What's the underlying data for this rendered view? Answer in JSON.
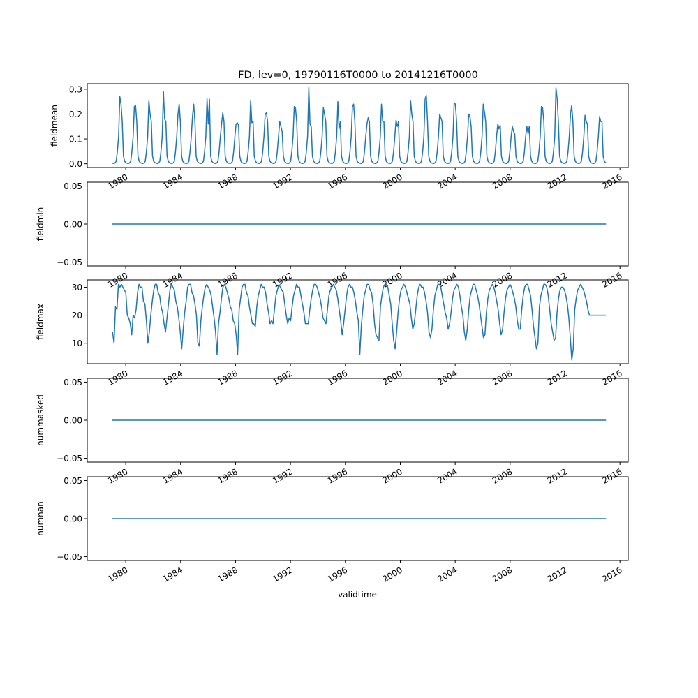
{
  "figure": {
    "title": "FD, lev=0, 19790116T0000 to 20141216T0000",
    "xlabel": "validtime",
    "line_color": "#1f77b4"
  },
  "chart_data": [
    {
      "type": "line",
      "ylabel": "fieldmean",
      "x_range": [
        "1979-01-16",
        "2014-12-16"
      ],
      "xlim": [
        1977.2,
        2016.6
      ],
      "x_ticks": [
        1980,
        1984,
        1988,
        1992,
        1996,
        2000,
        2004,
        2008,
        2012,
        2016
      ],
      "x_tick_labels": [
        "1980",
        "1984",
        "1988",
        "1992",
        "1996",
        "2000",
        "2004",
        "2008",
        "2012",
        "2016"
      ],
      "ylim": [
        -0.015,
        0.322
      ],
      "y_ticks": [
        0.0,
        0.1,
        0.2,
        0.3
      ],
      "y_tick_labels": [
        "0.0",
        "0.1",
        "0.2",
        "0.3"
      ],
      "annual_peaks": [
        0.27,
        0.235,
        0.29,
        0.24,
        0.262,
        0.205,
        0.165,
        0.255,
        0.205,
        0.17,
        0.23,
        0.307,
        0.225,
        0.25,
        0.24,
        0.185,
        0.24,
        0.175,
        0.255,
        0.275,
        0.2,
        0.245,
        0.2,
        0.24,
        0.16,
        0.15,
        0.15,
        0.23,
        0.305,
        0.235,
        0.195,
        0.19
      ],
      "values": [
        0.002,
        0.001,
        0.003,
        0.01,
        0.05,
        0.11,
        0.27,
        0.24,
        0.17,
        0.03,
        0.01,
        0.004,
        0.002,
        0.001,
        0.003,
        0.01,
        0.05,
        0.11,
        0.23,
        0.235,
        0.17,
        0.03,
        0.01,
        0.004,
        0.002,
        0.001,
        0.003,
        0.01,
        0.05,
        0.11,
        0.255,
        0.2,
        0.17,
        0.03,
        0.01,
        0.004,
        0.002,
        0.001,
        0.003,
        0.01,
        0.05,
        0.11,
        0.29,
        0.18,
        0.17,
        0.03,
        0.01,
        0.004,
        0.002,
        0.001,
        0.003,
        0.01,
        0.05,
        0.11,
        0.2,
        0.24,
        0.17,
        0.03,
        0.01,
        0.004,
        0.002,
        0.001,
        0.003,
        0.01,
        0.05,
        0.11,
        0.19,
        0.24,
        0.17,
        0.03,
        0.01,
        0.004,
        0.002,
        0.001,
        0.003,
        0.01,
        0.05,
        0.11,
        0.262,
        0.16,
        0.26,
        0.03,
        0.01,
        0.004,
        0.002,
        0.001,
        0.003,
        0.01,
        0.05,
        0.11,
        0.16,
        0.205,
        0.17,
        0.03,
        0.01,
        0.004,
        0.002,
        0.001,
        0.003,
        0.01,
        0.05,
        0.11,
        0.16,
        0.165,
        0.155,
        0.03,
        0.01,
        0.004,
        0.002,
        0.001,
        0.003,
        0.01,
        0.05,
        0.11,
        0.255,
        0.165,
        0.17,
        0.03,
        0.01,
        0.004,
        0.002,
        0.001,
        0.003,
        0.01,
        0.05,
        0.11,
        0.2,
        0.205,
        0.17,
        0.03,
        0.01,
        0.004,
        0.002,
        0.001,
        0.003,
        0.01,
        0.05,
        0.11,
        0.17,
        0.15,
        0.13,
        0.03,
        0.01,
        0.004,
        0.002,
        0.001,
        0.003,
        0.01,
        0.05,
        0.11,
        0.23,
        0.225,
        0.17,
        0.03,
        0.01,
        0.004,
        0.002,
        0.001,
        0.003,
        0.01,
        0.05,
        0.11,
        0.307,
        0.16,
        0.15,
        0.03,
        0.01,
        0.004,
        0.002,
        0.001,
        0.003,
        0.01,
        0.05,
        0.11,
        0.225,
        0.2,
        0.17,
        0.03,
        0.01,
        0.004,
        0.002,
        0.001,
        0.003,
        0.01,
        0.05,
        0.11,
        0.25,
        0.14,
        0.17,
        0.03,
        0.01,
        0.004,
        0.002,
        0.001,
        0.003,
        0.01,
        0.05,
        0.11,
        0.23,
        0.24,
        0.17,
        0.03,
        0.01,
        0.004,
        0.002,
        0.001,
        0.003,
        0.01,
        0.05,
        0.11,
        0.16,
        0.185,
        0.17,
        0.03,
        0.01,
        0.004,
        0.002,
        0.001,
        0.003,
        0.01,
        0.05,
        0.11,
        0.24,
        0.17,
        0.17,
        0.03,
        0.01,
        0.004,
        0.002,
        0.001,
        0.003,
        0.01,
        0.05,
        0.11,
        0.175,
        0.15,
        0.17,
        0.03,
        0.01,
        0.004,
        0.002,
        0.001,
        0.003,
        0.01,
        0.05,
        0.11,
        0.255,
        0.2,
        0.17,
        0.03,
        0.01,
        0.004,
        0.002,
        0.001,
        0.003,
        0.01,
        0.05,
        0.11,
        0.26,
        0.275,
        0.17,
        0.03,
        0.01,
        0.004,
        0.002,
        0.001,
        0.003,
        0.01,
        0.05,
        0.11,
        0.2,
        0.185,
        0.17,
        0.03,
        0.01,
        0.004,
        0.002,
        0.001,
        0.003,
        0.01,
        0.05,
        0.11,
        0.245,
        0.24,
        0.17,
        0.03,
        0.01,
        0.004,
        0.002,
        0.001,
        0.003,
        0.01,
        0.05,
        0.11,
        0.2,
        0.19,
        0.15,
        0.03,
        0.01,
        0.004,
        0.002,
        0.001,
        0.003,
        0.01,
        0.05,
        0.11,
        0.24,
        0.21,
        0.17,
        0.03,
        0.01,
        0.004,
        0.002,
        0.001,
        0.003,
        0.01,
        0.05,
        0.11,
        0.16,
        0.14,
        0.155,
        0.03,
        0.01,
        0.004,
        0.002,
        0.001,
        0.003,
        0.01,
        0.05,
        0.11,
        0.15,
        0.13,
        0.12,
        0.03,
        0.01,
        0.004,
        0.002,
        0.001,
        0.003,
        0.01,
        0.05,
        0.11,
        0.15,
        0.12,
        0.15,
        0.03,
        0.01,
        0.004,
        0.002,
        0.001,
        0.003,
        0.01,
        0.05,
        0.11,
        0.23,
        0.225,
        0.17,
        0.03,
        0.01,
        0.004,
        0.002,
        0.001,
        0.003,
        0.01,
        0.05,
        0.11,
        0.305,
        0.26,
        0.17,
        0.03,
        0.01,
        0.004,
        0.002,
        0.001,
        0.003,
        0.01,
        0.05,
        0.11,
        0.2,
        0.235,
        0.17,
        0.03,
        0.01,
        0.004,
        0.002,
        0.001,
        0.003,
        0.01,
        0.05,
        0.11,
        0.195,
        0.17,
        0.16,
        0.03,
        0.01,
        0.004,
        0.002,
        0.001,
        0.003,
        0.01,
        0.05,
        0.11,
        0.19,
        0.17,
        0.17,
        0.03,
        0.01,
        0.004
      ]
    },
    {
      "type": "line",
      "ylabel": "fieldmin",
      "x_range": [
        "1979-01-16",
        "2014-12-16"
      ],
      "xlim": [
        1977.2,
        2016.6
      ],
      "x_ticks": [
        1980,
        1984,
        1988,
        1992,
        1996,
        2000,
        2004,
        2008,
        2012,
        2016
      ],
      "x_tick_labels": [
        "1980",
        "1984",
        "1988",
        "1992",
        "1996",
        "2000",
        "2004",
        "2008",
        "2012",
        "2016"
      ],
      "ylim": [
        -0.055,
        0.055
      ],
      "y_ticks": [
        -0.05,
        0.0,
        0.05
      ],
      "y_tick_labels": [
        "−0.05",
        "0.00",
        "0.05"
      ],
      "constant_value": 0.0
    },
    {
      "type": "line",
      "ylabel": "fieldmax",
      "x_range": [
        "1979-01-16",
        "2014-12-16"
      ],
      "xlim": [
        1977.2,
        2016.6
      ],
      "x_ticks": [
        1980,
        1984,
        1988,
        1992,
        1996,
        2000,
        2004,
        2008,
        2012,
        2016
      ],
      "x_tick_labels": [
        "1980",
        "1984",
        "1988",
        "1992",
        "1996",
        "2000",
        "2004",
        "2008",
        "2012",
        "2016"
      ],
      "ylim": [
        2.7,
        32.6
      ],
      "y_ticks": [
        10,
        20,
        30
      ],
      "y_tick_labels": [
        "10",
        "20",
        "30"
      ],
      "annual_minima": [
        10,
        13,
        10,
        14,
        8,
        9,
        6,
        17,
        6,
        17,
        15,
        16,
        18,
        17,
        18,
        17,
        13,
        17,
        6,
        12,
        8,
        15,
        12,
        15,
        11,
        12,
        13,
        15,
        8,
        11,
        4,
        20
      ],
      "values": [
        14,
        10,
        23,
        22,
        31,
        30,
        31,
        30,
        29,
        28,
        20,
        19,
        17,
        13,
        20,
        19,
        22,
        28,
        31,
        30,
        30,
        25,
        24,
        18,
        10,
        14,
        20,
        25,
        29,
        31,
        31,
        28,
        27,
        23,
        21,
        17,
        14,
        19,
        24,
        29,
        31,
        30,
        29,
        25,
        23,
        19,
        14,
        8,
        15,
        21,
        25,
        30,
        31,
        31,
        28,
        27,
        24,
        20,
        10,
        9,
        18,
        23,
        27,
        30,
        31,
        30,
        29,
        27,
        23,
        19,
        14,
        6,
        17,
        21,
        26,
        30,
        31,
        30,
        28,
        26,
        23,
        22,
        18,
        17,
        13,
        6,
        22,
        26,
        30,
        31,
        31,
        28,
        27,
        23,
        20,
        17,
        17,
        16,
        23,
        27,
        29,
        31,
        30,
        30,
        28,
        24,
        21,
        17,
        18,
        17,
        22,
        27,
        29,
        31,
        30,
        29,
        28,
        24,
        20,
        17,
        19,
        18,
        23,
        27,
        29,
        31,
        30,
        30,
        27,
        24,
        21,
        17,
        17,
        17,
        22,
        26,
        29,
        31,
        31,
        30,
        28,
        26,
        23,
        19,
        18,
        17,
        22,
        27,
        29,
        30,
        31,
        30,
        29,
        26,
        22,
        18,
        13,
        17,
        22,
        27,
        30,
        31,
        30,
        30,
        28,
        25,
        21,
        18,
        6,
        16,
        22,
        27,
        29,
        31,
        31,
        29,
        28,
        24,
        17,
        13,
        12,
        11,
        23,
        27,
        30,
        31,
        31,
        30,
        27,
        24,
        17,
        11,
        8,
        14,
        21,
        26,
        29,
        30,
        31,
        30,
        28,
        26,
        24,
        19,
        15,
        17,
        22,
        27,
        30,
        31,
        30,
        30,
        28,
        25,
        21,
        14,
        12,
        15,
        22,
        27,
        29,
        31,
        31,
        30,
        27,
        24,
        21,
        19,
        15,
        17,
        21,
        26,
        29,
        30,
        31,
        30,
        27,
        23,
        20,
        14,
        11,
        15,
        22,
        27,
        29,
        31,
        31,
        29,
        27,
        24,
        20,
        16,
        12,
        13,
        21,
        26,
        29,
        30,
        31,
        30,
        28,
        25,
        22,
        17,
        13,
        15,
        21,
        26,
        29,
        30,
        31,
        30,
        28,
        26,
        23,
        18,
        15,
        15,
        22,
        27,
        30,
        31,
        31,
        29,
        27,
        22,
        16,
        12,
        8,
        10,
        23,
        27,
        29,
        31,
        31,
        30,
        27,
        22,
        17,
        14,
        11,
        12,
        21,
        26,
        29,
        30,
        30,
        29,
        27,
        24,
        19,
        12,
        4,
        8,
        22,
        26,
        29,
        30,
        31,
        30,
        29,
        27,
        25,
        22,
        20,
        20,
        20,
        20,
        20,
        20,
        20,
        20,
        20,
        20,
        20,
        20
      ]
    },
    {
      "type": "line",
      "ylabel": "nummasked",
      "x_range": [
        "1979-01-16",
        "2014-12-16"
      ],
      "xlim": [
        1977.2,
        2016.6
      ],
      "x_ticks": [
        1980,
        1984,
        1988,
        1992,
        1996,
        2000,
        2004,
        2008,
        2012,
        2016
      ],
      "x_tick_labels": [
        "1980",
        "1984",
        "1988",
        "1992",
        "1996",
        "2000",
        "2004",
        "2008",
        "2012",
        "2016"
      ],
      "ylim": [
        -0.055,
        0.055
      ],
      "y_ticks": [
        -0.05,
        0.0,
        0.05
      ],
      "y_tick_labels": [
        "−0.05",
        "0.00",
        "0.05"
      ],
      "constant_value": 0.0
    },
    {
      "type": "line",
      "ylabel": "numnan",
      "x_range": [
        "1979-01-16",
        "2014-12-16"
      ],
      "xlim": [
        1977.2,
        2016.6
      ],
      "x_ticks": [
        1980,
        1984,
        1988,
        1992,
        1996,
        2000,
        2004,
        2008,
        2012,
        2016
      ],
      "x_tick_labels": [
        "1980",
        "1984",
        "1988",
        "1992",
        "1996",
        "2000",
        "2004",
        "2008",
        "2012",
        "2016"
      ],
      "ylim": [
        -0.055,
        0.055
      ],
      "y_ticks": [
        -0.05,
        0.0,
        0.05
      ],
      "y_tick_labels": [
        "−0.05",
        "0.00",
        "0.05"
      ],
      "constant_value": 0.0
    }
  ]
}
